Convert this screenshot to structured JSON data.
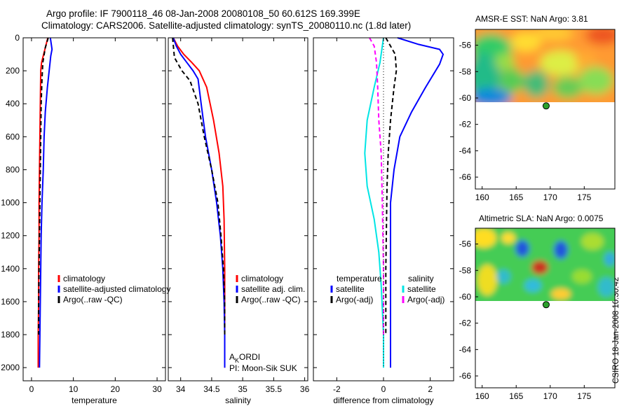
{
  "header": {
    "title_line1": "Argo profile: IF 7900118_46 08-Jan-2008 20080108_50 60.612S 169.399E",
    "title_line2": "Climatology: CARS2006. Satellite-adjusted climatology: synTS_20080110.nc (1.8d later)"
  },
  "footer": "CSIRO 18-Jan-2008 10:30:42",
  "chart_data": [
    {
      "type": "line",
      "name": "temperature",
      "xlabel": "temperature",
      "ylabel": "",
      "xlim": [
        -2,
        32
      ],
      "ylim": [
        2080,
        0
      ],
      "xticks": [
        0,
        10,
        20,
        30
      ],
      "yticks": [
        0,
        200,
        400,
        600,
        800,
        1000,
        1200,
        1400,
        1600,
        1800,
        2000
      ],
      "legend": [
        "climatology",
        "satellite-adjusted climatology",
        "Argo(..raw -QC)"
      ],
      "series": [
        {
          "name": "climatology",
          "color": "#ff0000",
          "x": [
            3.9,
            2.4,
            2.2,
            2.1,
            2.0,
            1.9,
            1.8,
            1.8,
            1.7,
            1.7,
            1.6,
            1.6,
            1.6
          ],
          "y": [
            0,
            150,
            200,
            400,
            600,
            800,
            1000,
            1200,
            1400,
            1600,
            1800,
            1900,
            2000
          ],
          "style": "solid"
        },
        {
          "name": "satellite-adjusted climatology",
          "color": "#0000ff",
          "x": [
            4.5,
            4.9,
            4.6,
            3.8,
            3.3,
            3.0,
            2.8,
            2.5,
            2.3,
            2.2,
            2.1,
            2.0,
            1.9
          ],
          "y": [
            0,
            70,
            110,
            300,
            450,
            600,
            800,
            1000,
            1200,
            1400,
            1600,
            1800,
            2000
          ],
          "style": "solid"
        },
        {
          "name": "Argo(..raw -QC)",
          "color": "#000000",
          "x": [
            4.0,
            3.3,
            2.7,
            2.5,
            2.3,
            2.2,
            2.1,
            2.0,
            1.9,
            1.8,
            1.7,
            1.7
          ],
          "y": [
            0,
            60,
            150,
            250,
            400,
            600,
            800,
            1000,
            1200,
            1400,
            1600,
            1800
          ],
          "style": "dashed"
        }
      ]
    },
    {
      "type": "line",
      "name": "salinity",
      "xlabel": "salinity",
      "ylabel": "",
      "xlim": [
        33.8,
        36.05
      ],
      "ylim": [
        2080,
        0
      ],
      "xticks": [
        34,
        34.5,
        35,
        35.5,
        36
      ],
      "legend": [
        "climatology",
        "satellite adj. clim.",
        "Argo(..raw -QC)"
      ],
      "annotation_line1": "A",
      "annotation_sub": "K",
      "annotation_line1_rest": "ORDI",
      "annotation_line2": "PI: Moon-Sik SUK",
      "series": [
        {
          "name": "climatology",
          "color": "#ff0000",
          "x": [
            33.88,
            33.95,
            34.05,
            34.18,
            34.3,
            34.42,
            34.53,
            34.62,
            34.68,
            34.7,
            34.71,
            34.71,
            34.71
          ],
          "y": [
            0,
            50,
            100,
            150,
            200,
            300,
            500,
            700,
            900,
            1100,
            1400,
            1700,
            2000
          ],
          "style": "solid"
        },
        {
          "name": "satellite adj. clim.",
          "color": "#0000ff",
          "x": [
            33.88,
            33.93,
            34.0,
            34.1,
            34.2,
            34.28,
            34.33,
            34.4,
            34.5,
            34.58,
            34.64,
            34.68,
            34.7,
            34.71,
            34.71
          ],
          "y": [
            0,
            50,
            100,
            150,
            200,
            250,
            400,
            600,
            800,
            1000,
            1200,
            1400,
            1600,
            1800,
            2000
          ],
          "style": "solid"
        },
        {
          "name": "Argo(..raw -QC)",
          "color": "#000000",
          "x": [
            33.87,
            33.9,
            34.02,
            34.15,
            34.28,
            34.38,
            34.5,
            34.6,
            34.65,
            34.69,
            34.71,
            34.71
          ],
          "y": [
            0,
            120,
            200,
            260,
            400,
            600,
            800,
            1000,
            1200,
            1400,
            1600,
            1800
          ],
          "style": "dashed"
        }
      ]
    },
    {
      "type": "line",
      "name": "difference",
      "xlabel": "difference from climatology",
      "ylabel": "",
      "xlim": [
        -3.0,
        3.0
      ],
      "ylim": [
        2080,
        0
      ],
      "xticks": [
        -2,
        0,
        2
      ],
      "legend_left_title": "temperature",
      "legend_right_title": "salinity",
      "legend_left": [
        "satellite",
        "Argo(-adj)"
      ],
      "legend_right": [
        "satellite",
        "Argo(-adj)"
      ],
      "series": [
        {
          "name": "temperature satellite",
          "color": "#0000ff",
          "x": [
            0.6,
            1.5,
            2.4,
            2.55,
            2.4,
            1.8,
            1.2,
            0.7,
            0.45,
            0.3,
            0.3,
            0.3,
            0.3,
            0.3
          ],
          "y": [
            0,
            40,
            70,
            100,
            160,
            300,
            450,
            600,
            800,
            1000,
            1200,
            1400,
            1700,
            2000
          ],
          "style": "solid"
        },
        {
          "name": "temperature Argo(-adj)",
          "color": "#000000",
          "x": [
            0.1,
            0.3,
            0.5,
            0.55,
            0.45,
            0.3,
            0.2,
            0.15,
            0.12,
            0.1,
            0.1,
            0.1
          ],
          "y": [
            0,
            50,
            100,
            200,
            300,
            500,
            700,
            900,
            1200,
            1400,
            1600,
            1800
          ],
          "style": "dashed"
        },
        {
          "name": "salinity satellite",
          "color": "#00e5e5",
          "x": [
            0.0,
            -0.05,
            -0.15,
            -0.4,
            -0.7,
            -0.8,
            -0.7,
            -0.4,
            -0.2,
            -0.1,
            0.0,
            0.0
          ],
          "y": [
            0,
            50,
            150,
            300,
            500,
            700,
            900,
            1100,
            1300,
            1500,
            1800,
            2000
          ],
          "style": "solid"
        },
        {
          "name": "salinity Argo(-adj)",
          "color": "#ff00ff",
          "x": [
            -0.6,
            -0.4,
            -0.3,
            -0.25,
            -0.2,
            -0.1,
            -0.05,
            0.0,
            0.0
          ],
          "y": [
            0,
            50,
            150,
            300,
            500,
            700,
            1000,
            1400,
            1800
          ],
          "style": "dashed"
        },
        {
          "name": "zero",
          "color": "#000000",
          "x": [
            0,
            0
          ],
          "y": [
            0,
            2000
          ],
          "style": "dotted"
        }
      ]
    },
    {
      "type": "heatmap",
      "name": "AMSR-E SST",
      "title": "AMSR-E SST: NaN Argo: 3.81",
      "xlim": [
        159,
        179.5
      ],
      "ylim": [
        -66.9,
        -54.8
      ],
      "xticks": [
        160,
        165,
        170,
        175
      ],
      "yticks": [
        -56,
        -58,
        -60,
        -62,
        -64,
        -66
      ],
      "data_extent": {
        "lat_max": -54.8,
        "lat_min": -60.1
      },
      "marker": {
        "lon": 169.4,
        "lat": -60.6,
        "color": "#2ca02c"
      }
    },
    {
      "type": "heatmap",
      "name": "Altimetric SLA",
      "title": "Altimetric SLA: NaN Argo: 0.0075",
      "xlim": [
        159,
        179.5
      ],
      "ylim": [
        -66.9,
        -54.8
      ],
      "xticks": [
        160,
        165,
        170,
        175
      ],
      "yticks": [
        -56,
        -58,
        -60,
        -62,
        -64,
        -66
      ],
      "data_extent": {
        "lat_max": -54.8,
        "lat_min": -60.1
      },
      "marker": {
        "lon": 169.4,
        "lat": -60.6,
        "color": "#2ca02c"
      }
    }
  ]
}
